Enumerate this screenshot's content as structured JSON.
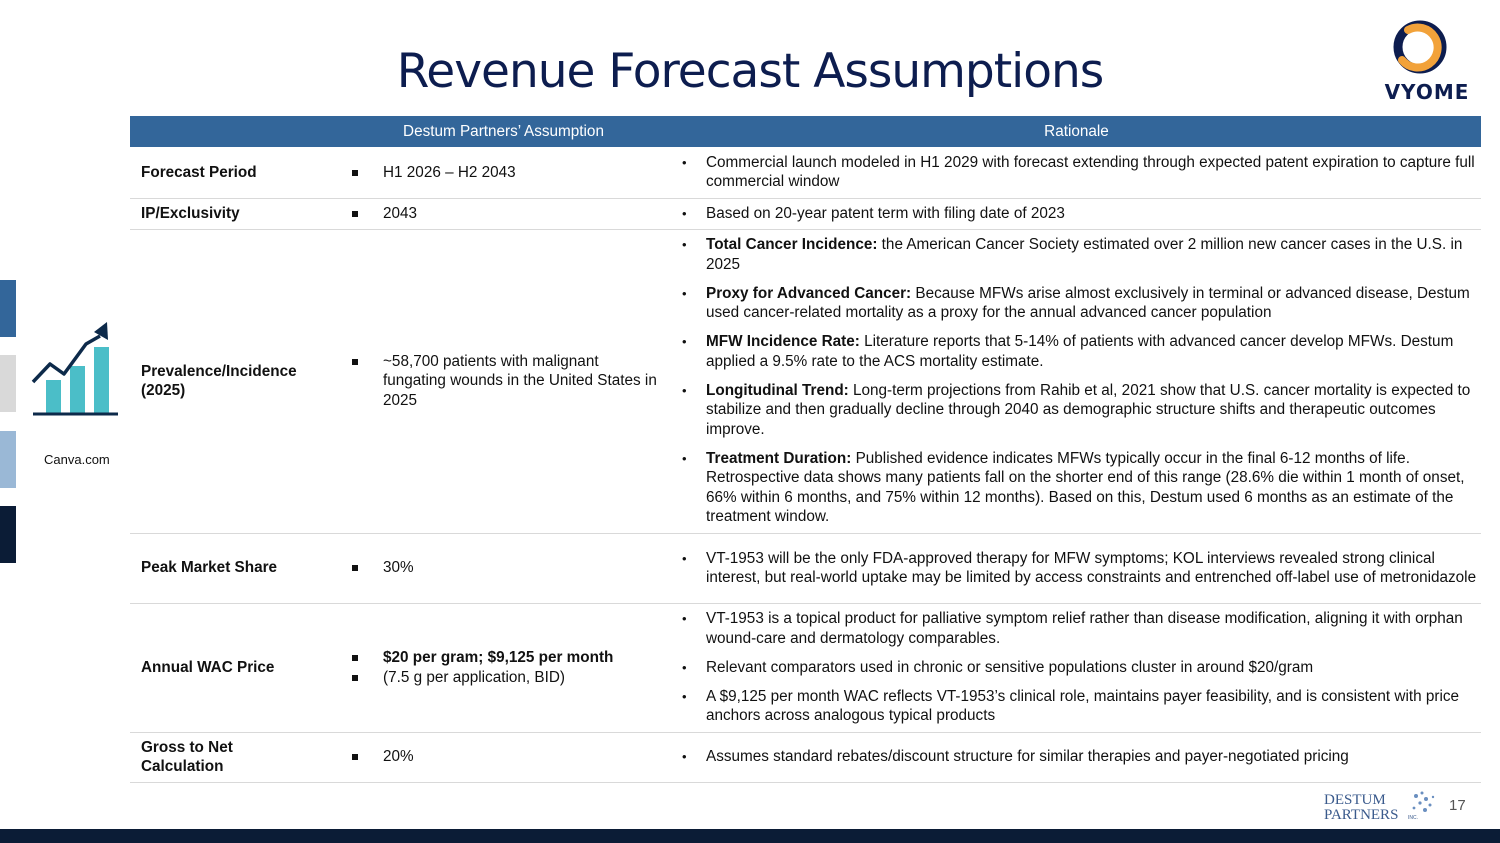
{
  "title": "Revenue Forecast Assumptions",
  "logo": {
    "text": "VYOME",
    "ring_colors": [
      "#0d1d4f",
      "#f2a23a"
    ]
  },
  "side_bar_colors": [
    "#33669a",
    "#d9d9d9",
    "#9ab8d6",
    "#0b1c36"
  ],
  "icon": {
    "name": "growth-chart-icon",
    "color_bars": "#4bbec8",
    "color_line": "#0d2a4a",
    "caption": "Canva.com"
  },
  "table": {
    "headers": [
      "",
      "Destum Partners’ Assumption",
      "Rationale"
    ],
    "rows": [
      {
        "name": "Forecast Period",
        "assumption": [
          "H1 2026 – H2 2043"
        ],
        "rationale": [
          {
            "bold": "",
            "text": "Commercial launch modeled in H1 2029 with forecast extending through expected patent expiration to capture full commercial window"
          }
        ]
      },
      {
        "name": "IP/Exclusivity",
        "assumption": [
          "2043"
        ],
        "rationale": [
          {
            "bold": "",
            "text": "Based on 20-year patent term with filing date of 2023"
          }
        ]
      },
      {
        "name": "Prevalence/Incidence (2025)",
        "assumption": [
          "~58,700 patients with malignant fungating wounds in the United States in 2025"
        ],
        "rationale": [
          {
            "bold": "Total Cancer Incidence:",
            "text": " the American Cancer Society estimated over 2 million new cancer cases in the U.S. in 2025"
          },
          {
            "bold": "Proxy for Advanced Cancer:",
            "text": " Because MFWs arise almost exclusively in terminal or advanced disease, Destum used cancer-related mortality as a proxy for the annual advanced cancer population"
          },
          {
            "bold": "MFW Incidence Rate:",
            "text": " Literature reports that 5-14% of patients with advanced cancer develop MFWs. Destum applied a 9.5% rate to the ACS mortality estimate."
          },
          {
            "bold": "Longitudinal Trend:",
            "text": " Long-term projections from Rahib et al, 2021 show that U.S. cancer mortality is expected to stabilize and then gradually decline through 2040 as demographic structure shifts and therapeutic outcomes improve."
          },
          {
            "bold": "Treatment Duration:",
            "text": " Published evidence indicates MFWs typically occur in the final 6-12 months of life. Retrospective data shows many patients fall on the shorter end of this range (28.6% die within 1 month of onset, 66% within 6 months, and 75% within 12 months). Based on this, Destum used 6 months as an estimate of the treatment window."
          }
        ]
      },
      {
        "name": "Peak Market Share",
        "assumption": [
          "30%"
        ],
        "rationale": [
          {
            "bold": "",
            "text": "VT-1953 will be the only FDA-approved therapy for MFW symptoms; KOL interviews revealed strong clinical interest, but real-world uptake may be limited by access constraints and entrenched off-label use of metronidazole"
          }
        ]
      },
      {
        "name": "Annual WAC Price",
        "assumption": [
          "$20 per gram; $9,125 per month",
          "(7.5 g per application, BID)"
        ],
        "rationale": [
          {
            "bold": "",
            "text": "VT-1953 is a topical product for palliative symptom relief rather than disease modification, aligning it with orphan wound-care and dermatology comparables."
          },
          {
            "bold": "",
            "text": "Relevant comparators used in chronic or sensitive populations cluster in around $20/gram"
          },
          {
            "bold": "",
            "text": "A $9,125 per month WAC reflects VT-1953’s clinical role, maintains payer feasibility, and is consistent with price anchors across analogous typical products"
          }
        ]
      },
      {
        "name": "Gross to Net Calculation",
        "assumption": [
          "20%"
        ],
        "rationale": [
          {
            "bold": "",
            "text": "Assumes standard rebates/discount structure for similar therapies and payer-negotiated pricing"
          }
        ]
      }
    ]
  },
  "footer": {
    "logo_line1": "DESTUM",
    "logo_line2": "PARTNERS",
    "logo_suffix": "INC.",
    "page_number": "17"
  }
}
